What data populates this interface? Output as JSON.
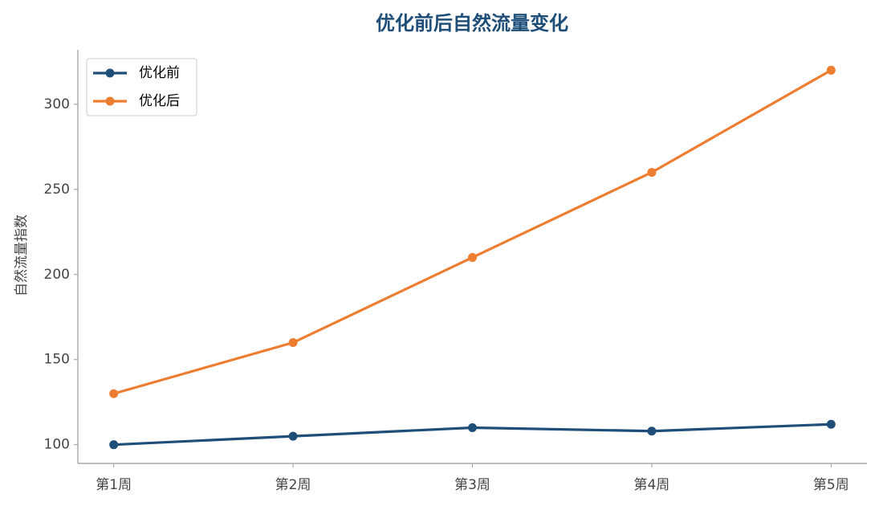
{
  "chart_data": {
    "type": "line",
    "title": "优化前后自然流量变化",
    "y_label": "自然流量指数",
    "categories": [
      "第1周",
      "第2周",
      "第3周",
      "第4周",
      "第5周"
    ],
    "series": [
      {
        "name": "优化前",
        "color": "#1f4e79",
        "values": [
          100,
          105,
          110,
          108,
          112
        ]
      },
      {
        "name": "优化后",
        "color": "#ed7d31",
        "values": [
          130,
          160,
          210,
          260,
          320
        ]
      }
    ],
    "ylim": [
      89,
      332
    ],
    "yticks": [
      100,
      150,
      200,
      250,
      300
    ],
    "grid": false,
    "legend": "upper left"
  }
}
